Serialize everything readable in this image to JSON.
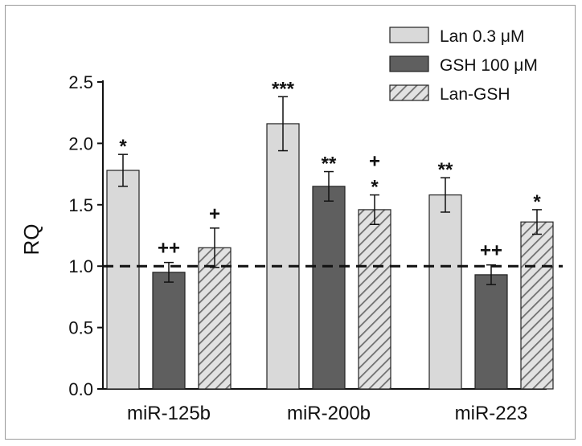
{
  "chart_data": {
    "type": "bar",
    "ylabel": "RQ",
    "xlabel": "",
    "ylim": [
      0,
      2.5
    ],
    "yticks": [
      "0.0",
      "0.5",
      "1.0",
      "1.5",
      "2.0",
      "2.5"
    ],
    "ytick_values": [
      0,
      0.5,
      1.0,
      1.5,
      2.0,
      2.5
    ],
    "reference_line": 1.0,
    "categories": [
      "miR-125b",
      "miR-200b",
      "miR-223"
    ],
    "legend_position": "top-right",
    "series": [
      {
        "name": "Lan 0.3 μM",
        "fill": "light",
        "color": "#d9d9d9",
        "values": [
          1.78,
          2.16,
          1.58
        ],
        "errors": [
          0.13,
          0.22,
          0.14
        ],
        "annotations": [
          [
            "*"
          ],
          [
            "***"
          ],
          [
            "**"
          ]
        ]
      },
      {
        "name": "GSH 100 μM",
        "fill": "dark",
        "color": "#5f5f5f",
        "values": [
          0.95,
          1.65,
          0.93
        ],
        "errors": [
          0.08,
          0.12,
          0.08
        ],
        "annotations": [
          [
            "++"
          ],
          [
            "**"
          ],
          [
            "++"
          ]
        ]
      },
      {
        "name": "Lan-GSH",
        "fill": "hatched",
        "color": "#c4c4c4",
        "values": [
          1.15,
          1.46,
          1.36
        ],
        "errors": [
          0.16,
          0.12,
          0.1
        ],
        "annotations": [
          [
            "+"
          ],
          [
            "+",
            "*"
          ],
          [
            "*"
          ]
        ]
      }
    ]
  }
}
